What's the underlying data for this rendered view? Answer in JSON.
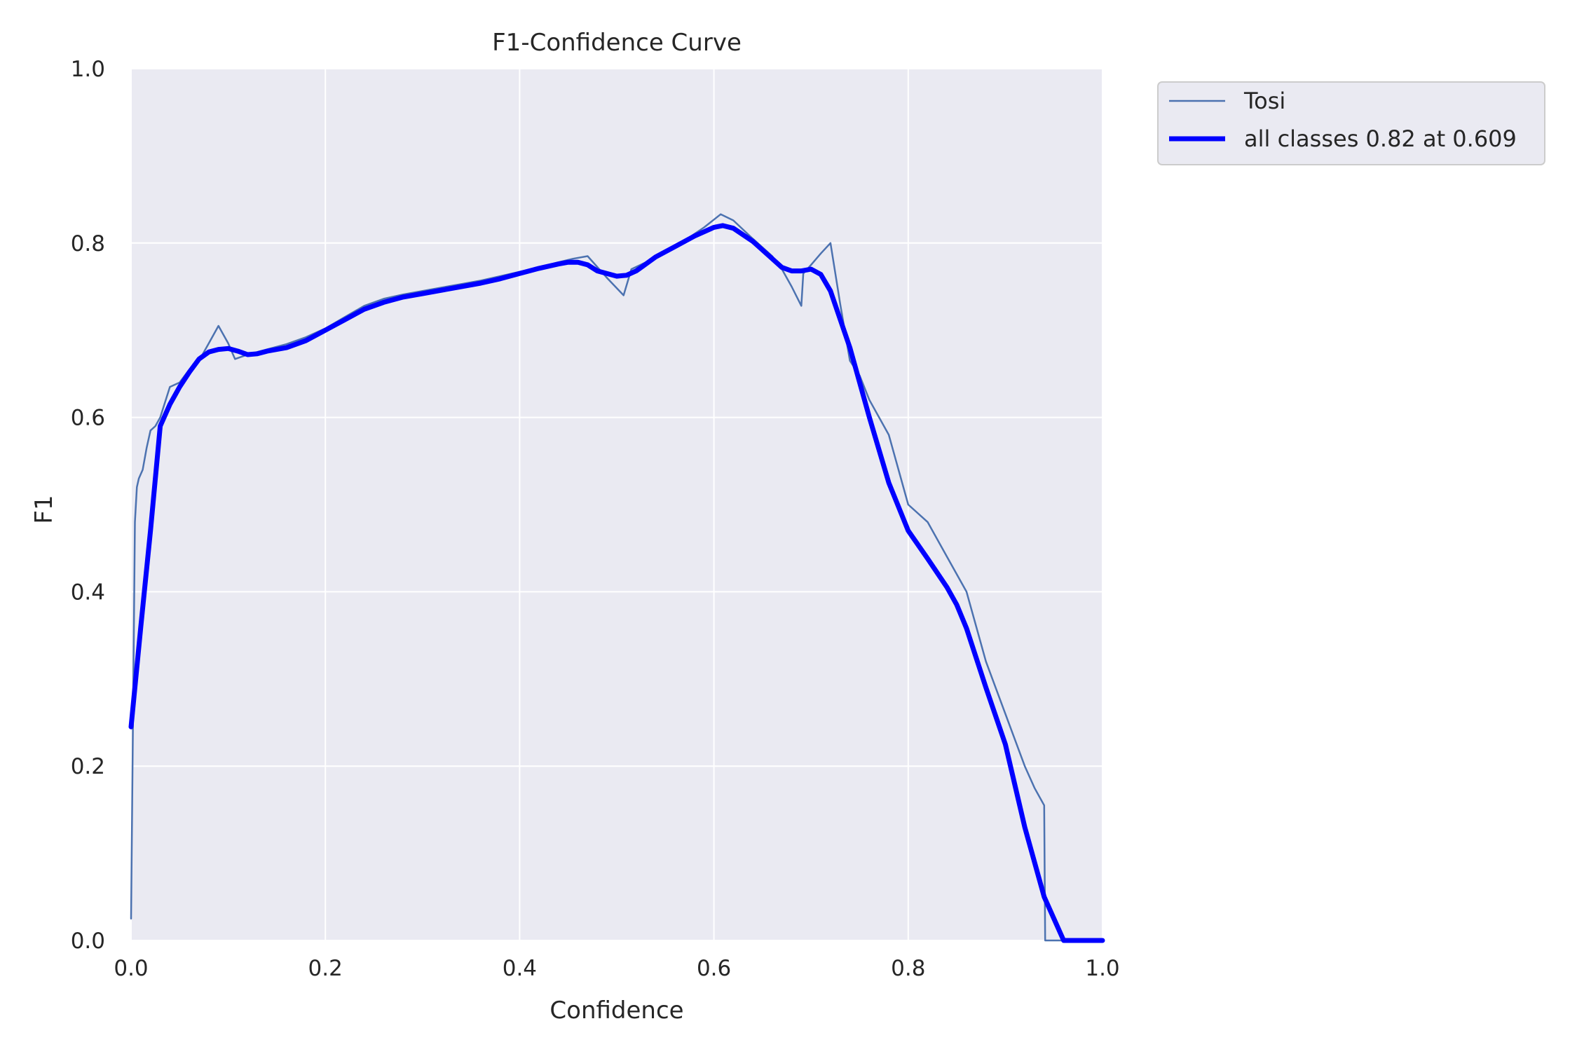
{
  "chart_data": {
    "type": "line",
    "title": "F1-Confidence Curve",
    "xlabel": "Confidence",
    "ylabel": "F1",
    "xlim": [
      0.0,
      1.0
    ],
    "ylim": [
      0.0,
      1.0
    ],
    "xticks": [
      "0.0",
      "0.2",
      "0.4",
      "0.6",
      "0.8",
      "1.0"
    ],
    "yticks": [
      "0.0",
      "0.2",
      "0.4",
      "0.6",
      "0.8",
      "1.0"
    ],
    "grid": true,
    "legend_position": "outside-top-right",
    "colors": {
      "background": "#eaeaf2",
      "grid": "#ffffff",
      "tosi": "#4c72b0",
      "all_classes": "#0000ff"
    },
    "series": [
      {
        "name": "Tosi",
        "x": [
          0.0,
          0.004,
          0.006,
          0.008,
          0.012,
          0.016,
          0.02,
          0.025,
          0.03,
          0.04,
          0.05,
          0.06,
          0.07,
          0.08,
          0.09,
          0.1,
          0.107,
          0.12,
          0.14,
          0.16,
          0.18,
          0.2,
          0.22,
          0.24,
          0.26,
          0.28,
          0.3,
          0.32,
          0.34,
          0.36,
          0.38,
          0.4,
          0.42,
          0.44,
          0.455,
          0.47,
          0.49,
          0.507,
          0.515,
          0.53,
          0.55,
          0.57,
          0.59,
          0.607,
          0.62,
          0.64,
          0.66,
          0.67,
          0.68,
          0.69,
          0.692,
          0.7,
          0.71,
          0.72,
          0.73,
          0.74,
          0.75,
          0.76,
          0.78,
          0.8,
          0.82,
          0.84,
          0.86,
          0.88,
          0.9,
          0.92,
          0.93,
          0.94,
          0.941,
          0.945,
          0.96,
          1.0
        ],
        "values": [
          0.025,
          0.48,
          0.52,
          0.53,
          0.54,
          0.565,
          0.585,
          0.59,
          0.6,
          0.635,
          0.64,
          0.655,
          0.665,
          0.685,
          0.705,
          0.685,
          0.667,
          0.672,
          0.678,
          0.684,
          0.692,
          0.702,
          0.715,
          0.728,
          0.736,
          0.741,
          0.745,
          0.749,
          0.753,
          0.757,
          0.762,
          0.767,
          0.772,
          0.778,
          0.782,
          0.785,
          0.76,
          0.74,
          0.77,
          0.778,
          0.79,
          0.803,
          0.818,
          0.833,
          0.826,
          0.805,
          0.785,
          0.77,
          0.75,
          0.728,
          0.765,
          0.775,
          0.788,
          0.8,
          0.73,
          0.665,
          0.648,
          0.62,
          0.58,
          0.5,
          0.48,
          0.44,
          0.4,
          0.32,
          0.26,
          0.2,
          0.175,
          0.155,
          0.0,
          0.0,
          0.0,
          0.0
        ]
      },
      {
        "name": "all classes 0.82 at 0.609",
        "x": [
          0.0,
          0.01,
          0.02,
          0.03,
          0.04,
          0.05,
          0.06,
          0.07,
          0.08,
          0.09,
          0.1,
          0.11,
          0.12,
          0.13,
          0.14,
          0.16,
          0.18,
          0.2,
          0.22,
          0.24,
          0.26,
          0.28,
          0.3,
          0.32,
          0.34,
          0.36,
          0.38,
          0.4,
          0.42,
          0.44,
          0.45,
          0.46,
          0.47,
          0.48,
          0.5,
          0.51,
          0.52,
          0.53,
          0.54,
          0.56,
          0.58,
          0.6,
          0.609,
          0.62,
          0.64,
          0.66,
          0.67,
          0.68,
          0.69,
          0.7,
          0.71,
          0.72,
          0.74,
          0.76,
          0.78,
          0.8,
          0.82,
          0.84,
          0.85,
          0.86,
          0.88,
          0.9,
          0.92,
          0.94,
          0.96,
          0.965,
          1.0
        ],
        "values": [
          0.245,
          0.36,
          0.47,
          0.59,
          0.615,
          0.635,
          0.652,
          0.667,
          0.675,
          0.678,
          0.679,
          0.676,
          0.672,
          0.673,
          0.676,
          0.68,
          0.688,
          0.7,
          0.712,
          0.724,
          0.732,
          0.738,
          0.742,
          0.746,
          0.75,
          0.754,
          0.759,
          0.765,
          0.771,
          0.776,
          0.778,
          0.778,
          0.775,
          0.768,
          0.762,
          0.763,
          0.768,
          0.776,
          0.784,
          0.796,
          0.808,
          0.818,
          0.82,
          0.817,
          0.802,
          0.782,
          0.772,
          0.768,
          0.768,
          0.77,
          0.764,
          0.745,
          0.68,
          0.6,
          0.525,
          0.47,
          0.438,
          0.405,
          0.385,
          0.358,
          0.29,
          0.225,
          0.13,
          0.05,
          0.0,
          0.0,
          0.0
        ]
      }
    ]
  }
}
